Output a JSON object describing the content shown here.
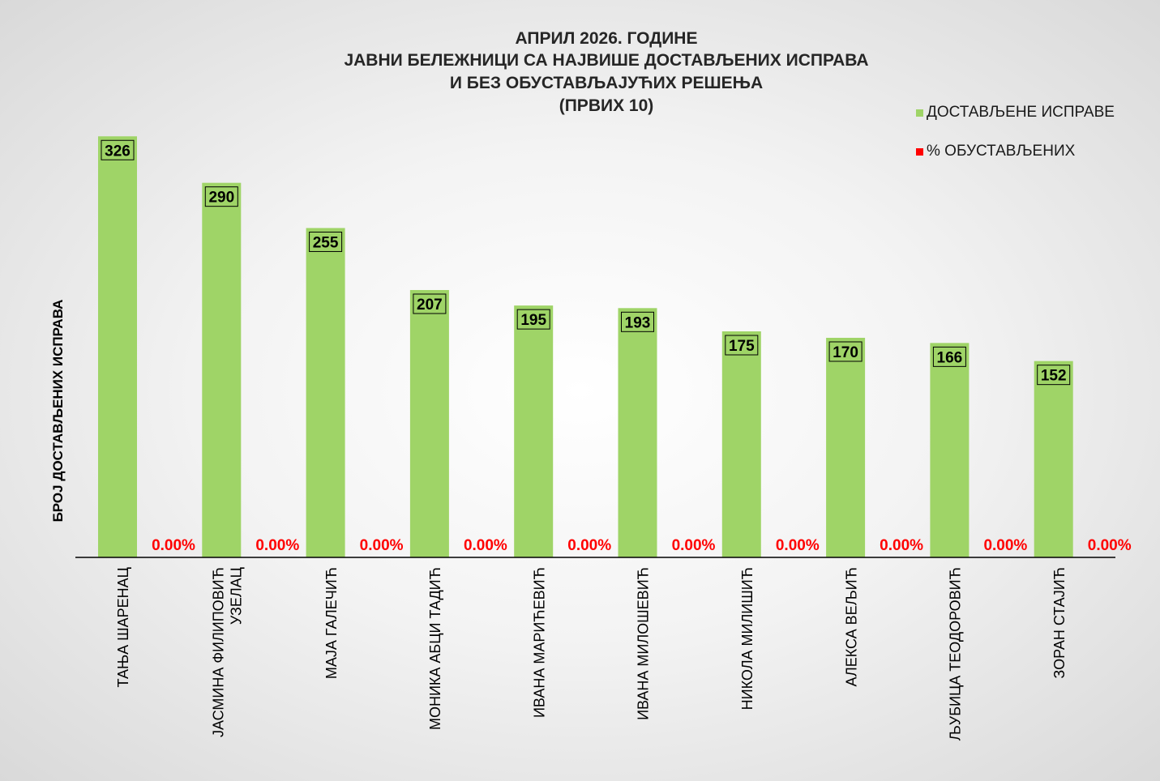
{
  "chart_data": {
    "type": "bar",
    "title_lines": [
      "АПРИЛ 2026. ГОДИНЕ",
      "ЈАВНИ БЕЛЕЖНИЦИ СА НАЈВИШЕ ДОСТАВЉЕНИХ ИСПРАВА",
      "И БЕЗ ОБУСТАВЉАЈУЋИХ РЕШЕЊА",
      "(ПРВИХ 10)"
    ],
    "ylabel": "БРОЈ ДОСТАВЉЕНИХ ИСПРАВА",
    "categories": [
      [
        "ТАЊА ШАРЕНАЦ"
      ],
      [
        "ЈАСМИНА ФИЛИПОВИЋ",
        "УЗЕЛАЦ"
      ],
      [
        "МАЈА ГАЛЕЧИЋ"
      ],
      [
        "МОНИКА АБЦИ ТАДИЋ"
      ],
      [
        "ИВАНА МАРИЋЕВИЋ"
      ],
      [
        "ИВАНА МИЛОШЕВИЋ"
      ],
      [
        "НИКОЛА МИЛИШИЋ"
      ],
      [
        "АЛЕКСА ВЕЉИЋ"
      ],
      [
        "ЉУБИЦА ТЕОДОРОВИЋ"
      ],
      [
        "ЗОРАН СТАЈИЋ"
      ]
    ],
    "series": [
      {
        "name": "ДОСТАВЉЕНЕ ИСПРАВЕ",
        "color": "#9fd467",
        "values": [
          326,
          290,
          255,
          207,
          195,
          193,
          175,
          170,
          166,
          152
        ],
        "labels": [
          "326",
          "290",
          "255",
          "207",
          "195",
          "193",
          "175",
          "170",
          "166",
          "152"
        ]
      },
      {
        "name": "% ОБУСТАВЉЕНИХ",
        "color": "#ff0000",
        "values": [
          0,
          0,
          0,
          0,
          0,
          0,
          0,
          0,
          0,
          0
        ],
        "labels": [
          "0.00%",
          "0.00%",
          "0.00%",
          "0.00%",
          "0.00%",
          "0.00%",
          "0.00%",
          "0.00%",
          "0.00%",
          "0.00%"
        ]
      }
    ],
    "ylim": [
      0,
      350
    ],
    "grid": false,
    "legend_position": "top-right"
  }
}
